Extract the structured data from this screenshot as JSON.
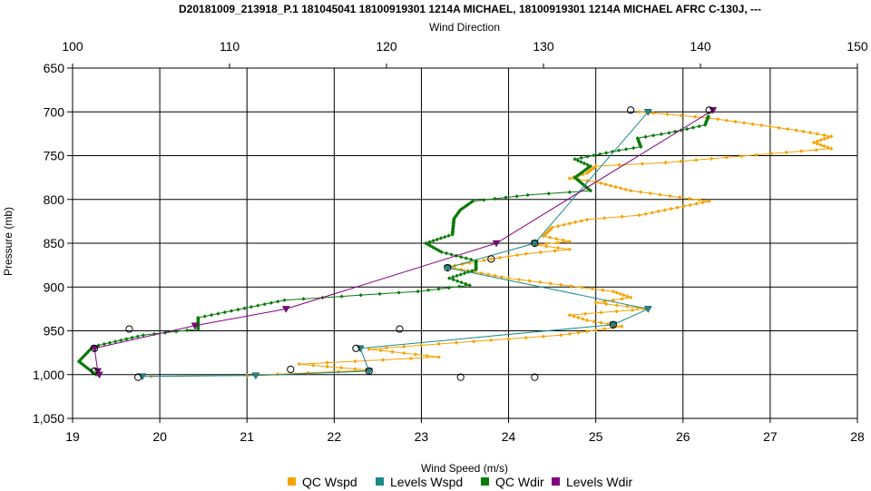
{
  "chart_data": {
    "type": "line",
    "title": "D20181009_213918_P.1 181045041 18100919301 1214A MICHAEL, 18100919301 1214A MICHAEL AFRC C-130J, ---",
    "xlabel": "Wind Speed (m/s)",
    "x2label": "Wind Direction",
    "ylabel": "Pressure (mb)",
    "xlim": [
      19,
      28
    ],
    "x2lim": [
      100,
      150
    ],
    "ylim": [
      650,
      1050
    ],
    "y_inverted": true,
    "grid": true,
    "legend_position": "bottom",
    "x_ticks": [
      "19",
      "20",
      "21",
      "22",
      "23",
      "24",
      "25",
      "26",
      "27",
      "28"
    ],
    "x2_ticks": [
      "100",
      "110",
      "120",
      "130",
      "140",
      "150"
    ],
    "y_ticks": [
      "650",
      "700",
      "750",
      "800",
      "850",
      "900",
      "950",
      "1,000",
      "1,050"
    ],
    "colors": {
      "qc_wspd": "#f5a300",
      "levels_wspd": "#1a8a8a",
      "qc_wdir": "#0a7a0a",
      "levels_wdir": "#800080"
    },
    "series": [
      {
        "name": "QC Wspd",
        "axis": "wind_speed",
        "points": [
          [
            25.5,
            700
          ],
          [
            26.3,
            707
          ],
          [
            26.8,
            714
          ],
          [
            27.3,
            721
          ],
          [
            27.7,
            728
          ],
          [
            27.5,
            735
          ],
          [
            27.7,
            742
          ],
          [
            26.5,
            752
          ],
          [
            25.8,
            758
          ],
          [
            25.0,
            762
          ],
          [
            24.9,
            770
          ],
          [
            24.7,
            776
          ],
          [
            25.0,
            780
          ],
          [
            25.4,
            790
          ],
          [
            26.3,
            802
          ],
          [
            25.5,
            818
          ],
          [
            24.9,
            823
          ],
          [
            24.5,
            832
          ],
          [
            24.4,
            842
          ],
          [
            24.7,
            848
          ],
          [
            24.3,
            852
          ],
          [
            24.7,
            857
          ],
          [
            24.2,
            862
          ],
          [
            23.8,
            868
          ],
          [
            23.3,
            877
          ],
          [
            24.0,
            890
          ],
          [
            25.2,
            905
          ],
          [
            25.4,
            912
          ],
          [
            25.0,
            918
          ],
          [
            25.6,
            925
          ],
          [
            24.7,
            932
          ],
          [
            24.9,
            938
          ],
          [
            25.3,
            945
          ],
          [
            24.6,
            955
          ],
          [
            23.2,
            965
          ],
          [
            22.4,
            971
          ],
          [
            23.2,
            980
          ],
          [
            21.6,
            988
          ],
          [
            22.4,
            995
          ],
          [
            21.0,
            1001
          ],
          [
            19.9,
            1002
          ]
        ]
      },
      {
        "name": "Levels Wspd",
        "axis": "wind_speed",
        "points": [
          [
            25.6,
            700
          ],
          [
            24.3,
            850
          ],
          [
            23.3,
            878
          ],
          [
            25.6,
            925
          ],
          [
            25.2,
            943
          ],
          [
            22.3,
            970
          ],
          [
            22.4,
            996
          ],
          [
            21.1,
            1001
          ],
          [
            19.8,
            1002
          ]
        ]
      },
      {
        "name": "QC Wdir",
        "axis": "wind_direction",
        "points": [
          [
            140.5,
            705
          ],
          [
            140.3,
            715
          ],
          [
            138.0,
            724
          ],
          [
            136.0,
            730
          ],
          [
            136.2,
            740
          ],
          [
            134.8,
            744
          ],
          [
            132.0,
            754
          ],
          [
            133.0,
            762
          ],
          [
            132.0,
            775
          ],
          [
            133.0,
            790
          ],
          [
            129.0,
            795
          ],
          [
            125.5,
            802
          ],
          [
            124.7,
            812
          ],
          [
            124.3,
            822
          ],
          [
            124.2,
            840
          ],
          [
            122.5,
            850
          ],
          [
            123.5,
            860
          ],
          [
            125.7,
            870
          ],
          [
            125.7,
            880
          ],
          [
            124.0,
            890
          ],
          [
            125.3,
            898
          ],
          [
            122.0,
            905
          ],
          [
            113.5,
            915
          ],
          [
            108.0,
            935
          ],
          [
            108.0,
            948
          ],
          [
            104.5,
            955
          ],
          [
            101.3,
            968
          ],
          [
            100.4,
            985
          ],
          [
            100.9,
            992
          ],
          [
            101.5,
            1000
          ]
        ]
      },
      {
        "name": "Levels Wdir",
        "axis": "wind_direction",
        "points": [
          [
            140.8,
            698
          ],
          [
            127.0,
            850
          ],
          [
            113.6,
            925
          ],
          [
            107.8,
            944
          ],
          [
            101.4,
            970
          ],
          [
            101.6,
            996
          ],
          [
            101.7,
            1000
          ]
        ]
      }
    ],
    "unlabeled_markers": {
      "symbol": "circle",
      "points": [
        [
          25.4,
          698
        ],
        [
          26.3,
          698
        ],
        [
          24.3,
          850
        ],
        [
          23.8,
          868
        ],
        [
          23.3,
          878
        ],
        [
          25.2,
          943
        ],
        [
          19.65,
          948
        ],
        [
          22.75,
          948
        ],
        [
          22.25,
          970
        ],
        [
          19.25,
          970
        ],
        [
          21.5,
          994
        ],
        [
          22.4,
          996
        ],
        [
          19.25,
          996
        ],
        [
          19.75,
          1003
        ],
        [
          23.45,
          1003
        ],
        [
          24.3,
          1003
        ]
      ]
    },
    "legend": [
      {
        "name": "QC Wspd",
        "color": "#f5a300"
      },
      {
        "name": "Levels Wspd",
        "color": "#1a8a8a"
      },
      {
        "name": "QC Wdir",
        "color": "#0a7a0a"
      },
      {
        "name": "Levels Wdir",
        "color": "#800080"
      }
    ]
  }
}
